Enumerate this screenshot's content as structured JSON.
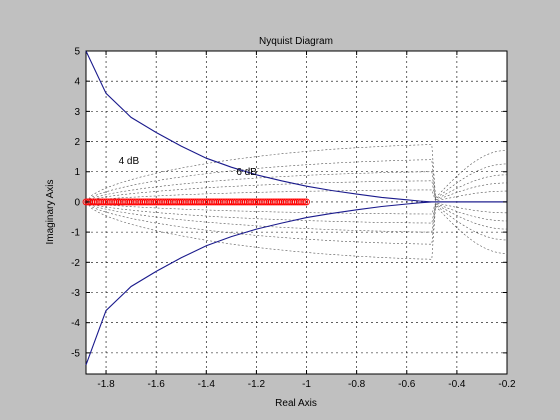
{
  "chart_data": {
    "type": "line",
    "title": "Nyquist Diagram",
    "xlabel": "Real Axis",
    "ylabel": "Imaginary Axis",
    "xlim": [
      -1.88,
      -0.2
    ],
    "ylim": [
      -5.7,
      5
    ],
    "xticks": [
      -1.8,
      -1.6,
      -1.4,
      -1.2,
      -1,
      -0.8,
      -0.6,
      -0.4,
      -0.2
    ],
    "xtick_labels": [
      "-1.8",
      "-1.6",
      "-1.4",
      "-1.2",
      "-1",
      "-0.8",
      "-0.6",
      "-0.4",
      "-0.2"
    ],
    "yticks": [
      5,
      4,
      3,
      2,
      1,
      0,
      -1,
      -2,
      -3,
      -4,
      -5
    ],
    "ytick_labels": [
      "5",
      "4",
      "3",
      "2",
      "1",
      "0",
      "-1",
      "-2",
      "-3",
      "-4",
      "-5"
    ],
    "grid": true,
    "grid_labels": [
      {
        "text": "4 dB",
        "x": -1.75,
        "y": 1.25
      },
      {
        "text": "6 dB",
        "x": -1.28,
        "y": 0.9
      }
    ],
    "series": [
      {
        "role": "nyquist-positive",
        "color": "#1a1a8c",
        "x": [
          -1.88,
          -1.8,
          -1.7,
          -1.6,
          -1.5,
          -1.4,
          -1.3,
          -1.2,
          -1.1,
          -1.0,
          -0.9,
          -0.8,
          -0.7,
          -0.6,
          -0.55,
          -0.5,
          -0.45,
          -0.4,
          -0.3,
          -0.2
        ],
        "y": [
          5.0,
          3.6,
          2.8,
          2.3,
          1.85,
          1.45,
          1.15,
          0.9,
          0.7,
          0.52,
          0.38,
          0.26,
          0.15,
          0.07,
          0.03,
          0.0,
          0.0,
          0.0,
          0.0,
          0.0
        ]
      },
      {
        "role": "nyquist-negative",
        "color": "#1a1a8c",
        "x": [
          -1.88,
          -1.8,
          -1.7,
          -1.6,
          -1.5,
          -1.4,
          -1.3,
          -1.2,
          -1.1,
          -1.0,
          -0.9,
          -0.8,
          -0.7,
          -0.6,
          -0.55,
          -0.5,
          -0.45,
          -0.4,
          -0.3,
          -0.2
        ],
        "y": [
          -5.4,
          -3.6,
          -2.8,
          -2.3,
          -1.85,
          -1.45,
          -1.15,
          -0.9,
          -0.7,
          -0.52,
          -0.38,
          -0.26,
          -0.15,
          -0.07,
          -0.03,
          0.0,
          0.0,
          0.0,
          0.0,
          0.0
        ]
      },
      {
        "role": "circle-markers",
        "color": "#ff0000",
        "marker": "o",
        "x_from": -1.88,
        "x_to": -1.0,
        "count": 120,
        "y": 0
      }
    ]
  }
}
